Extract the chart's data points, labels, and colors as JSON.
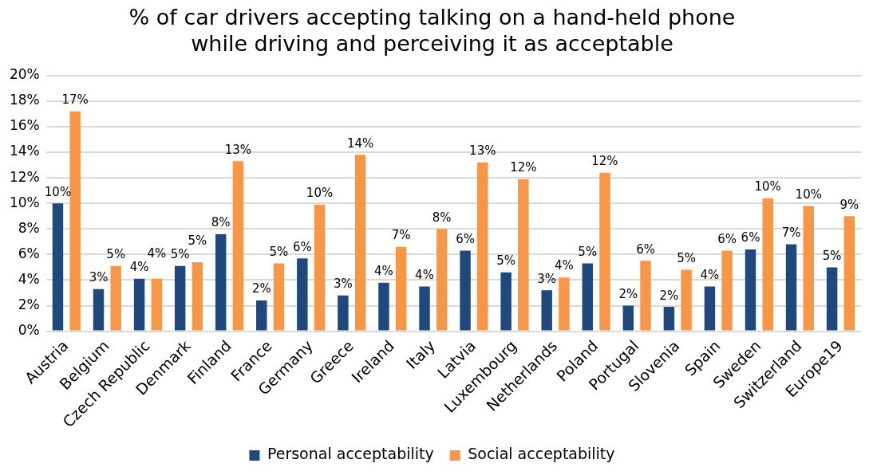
{
  "chart_data": {
    "type": "bar",
    "title": "% of car drivers accepting talking on a hand-held phone\nwhile driving and perceiving it as acceptable",
    "categories": [
      "Austria",
      "Belgium",
      "Czech Republic",
      "Denmark",
      "Finland",
      "France",
      "Germany",
      "Greece",
      "Ireland",
      "Italy",
      "Latvia",
      "Luxembourg",
      "Netherlands",
      "Poland",
      "Portugal",
      "Slovenia",
      "Spain",
      "Sweden",
      "Switzerland",
      "Europe19"
    ],
    "series": [
      {
        "name": "Personal acceptability",
        "color": "#1f497d",
        "values": [
          10.0,
          3.3,
          4.1,
          5.1,
          7.6,
          2.4,
          5.7,
          2.8,
          3.8,
          3.5,
          6.3,
          4.6,
          3.2,
          5.3,
          2.0,
          1.9,
          3.5,
          6.4,
          6.8,
          5.0
        ],
        "value_labels": [
          "10%",
          "3%",
          "4%",
          "5%",
          "8%",
          "2%",
          "6%",
          "3%",
          "4%",
          "4%",
          "6%",
          "5%",
          "3%",
          "5%",
          "2%",
          "2%",
          "4%",
          "6%",
          "7%",
          "5%"
        ]
      },
      {
        "name": "Social acceptability",
        "color": "#f79646",
        "values": [
          17.2,
          5.1,
          4.1,
          5.4,
          13.3,
          5.3,
          9.9,
          13.8,
          6.6,
          8.0,
          13.2,
          11.9,
          4.2,
          12.4,
          5.5,
          4.8,
          6.3,
          10.4,
          9.8,
          9.0
        ],
        "value_labels": [
          "17%",
          "5%",
          "4%",
          "5%",
          "13%",
          "5%",
          "10%",
          "14%",
          "7%",
          "8%",
          "13%",
          "12%",
          "4%",
          "12%",
          "6%",
          "5%",
          "6%",
          "10%",
          "10%",
          "9%"
        ]
      }
    ],
    "ylim": [
      0,
      20
    ],
    "yticks": [
      {
        "value": 0,
        "label": "0%"
      },
      {
        "value": 2,
        "label": "2%"
      },
      {
        "value": 4,
        "label": "4%"
      },
      {
        "value": 6,
        "label": "6%"
      },
      {
        "value": 8,
        "label": "8%"
      },
      {
        "value": 10,
        "label": "10%"
      },
      {
        "value": 12,
        "label": "12%"
      },
      {
        "value": 14,
        "label": "14%"
      },
      {
        "value": 16,
        "label": "16%"
      },
      {
        "value": 18,
        "label": "18%"
      },
      {
        "value": 20,
        "label": "20%"
      }
    ],
    "grid": "y",
    "legend": "bottom"
  }
}
